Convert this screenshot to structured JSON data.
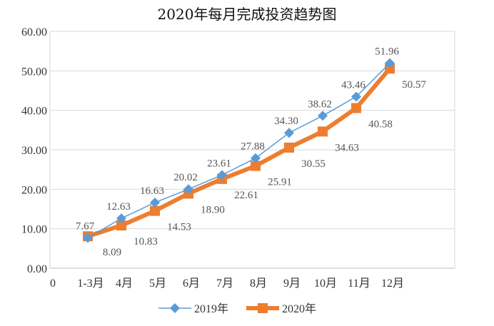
{
  "chart_data": {
    "type": "line",
    "title": "2020年每月完成投资趋势图",
    "categories": [
      "1-3月",
      "4月",
      "5月",
      "6月",
      "7月",
      "8月",
      "9月",
      "10月",
      "11月",
      "12月"
    ],
    "x_origin_label": "0",
    "ylim": [
      0,
      60
    ],
    "yticks": [
      "0.00",
      "10.00",
      "20.00",
      "30.00",
      "40.00",
      "50.00",
      "60.00"
    ],
    "grid": "horizontal",
    "legend_position": "bottom",
    "series": [
      {
        "name": "2019年",
        "color": "#5b9bd5",
        "marker": "diamond",
        "values": [
          7.67,
          12.63,
          16.63,
          20.02,
          23.61,
          27.88,
          34.3,
          38.62,
          43.46,
          51.96
        ],
        "labels": [
          "7.67",
          "12.63",
          "16.63",
          "20.02",
          "23.61",
          "27.88",
          "34.30",
          "38.62",
          "43.46",
          "51.96"
        ]
      },
      {
        "name": "2020年",
        "color": "#ed7d31",
        "marker": "square",
        "values": [
          8.09,
          10.83,
          14.53,
          18.9,
          22.61,
          25.91,
          30.55,
          34.63,
          40.58,
          50.57
        ],
        "labels": [
          "8.09",
          "10.83",
          "14.53",
          "18.90",
          "22.61",
          "25.91",
          "30.55",
          "34.63",
          "40.58",
          "50.57"
        ]
      }
    ]
  }
}
